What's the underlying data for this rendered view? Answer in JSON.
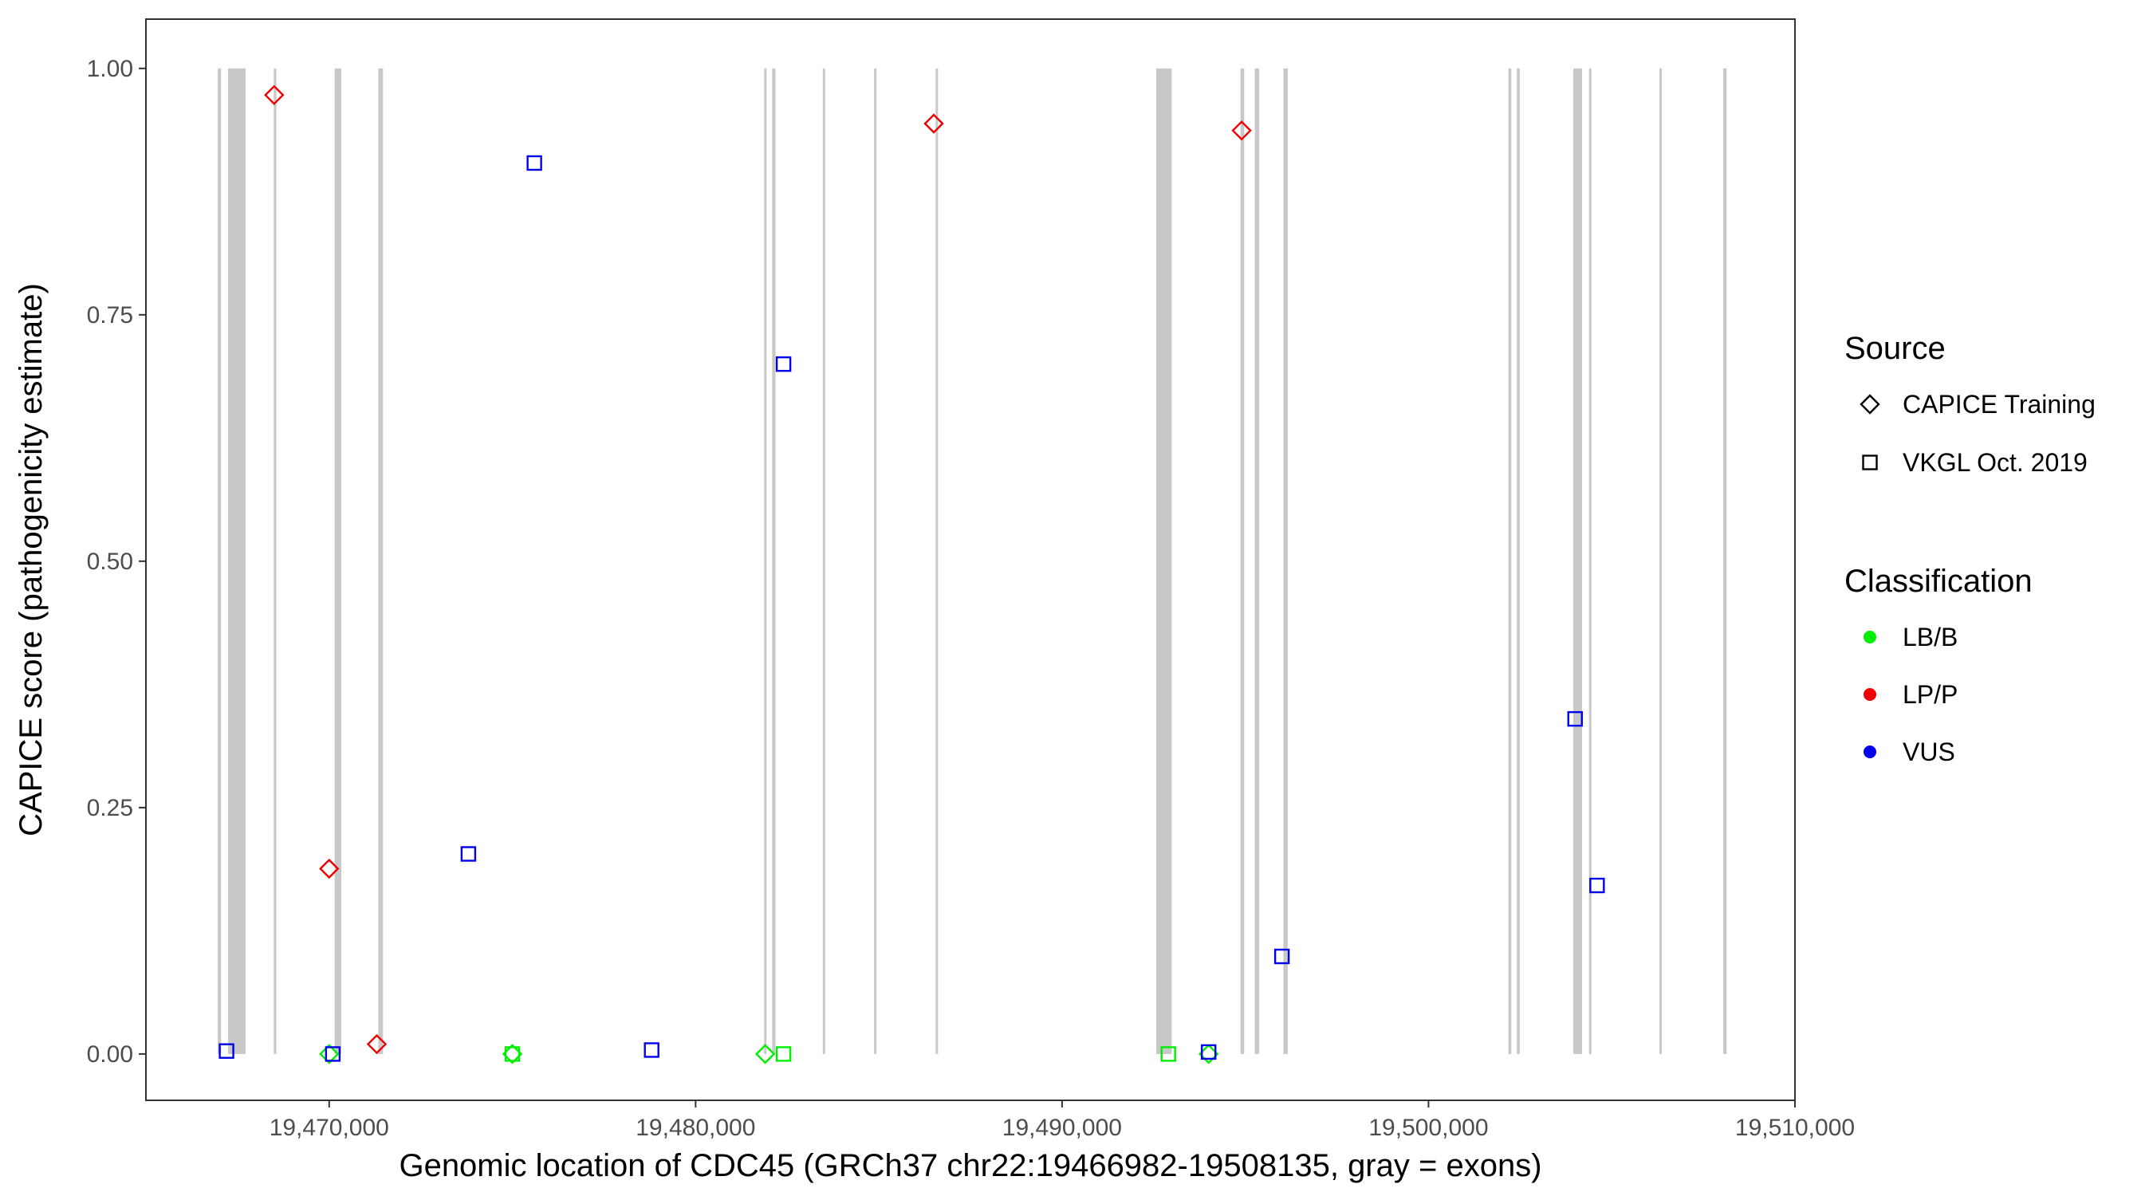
{
  "chart_data": {
    "type": "scatter",
    "title": "",
    "xlabel": "Genomic location of CDC45 (GRCh37 chr22:19466982-19508135, gray = exons)",
    "ylabel": "CAPICE score (pathogenicity estimate)",
    "xlim": [
      19465000,
      19510000
    ],
    "ylim": [
      -0.047,
      1.05
    ],
    "x_ticks": [
      19470000,
      19480000,
      19490000,
      19500000,
      19510000
    ],
    "x_tick_labels": [
      "19,470,000",
      "19,480,000",
      "19,490,000",
      "19,500,000",
      "19,510,000"
    ],
    "y_ticks": [
      0,
      0.25,
      0.5,
      0.75,
      1.0
    ],
    "y_tick_labels": [
      "0.00",
      "0.25",
      "0.50",
      "0.75",
      "1.00"
    ],
    "grid": false,
    "legend_position": "right",
    "exon_color": "#c8c8c8",
    "exons": [
      [
        19466960,
        19467050
      ],
      [
        19467240,
        19467720
      ],
      [
        19468490,
        19468560
      ],
      [
        19470150,
        19470330
      ],
      [
        19471340,
        19471470
      ],
      [
        19481870,
        19481930
      ],
      [
        19482090,
        19482180
      ],
      [
        19483470,
        19483530
      ],
      [
        19484870,
        19484930
      ],
      [
        19486550,
        19486610
      ],
      [
        19492570,
        19492990
      ],
      [
        19494870,
        19494970
      ],
      [
        19495260,
        19495380
      ],
      [
        19496040,
        19496160
      ],
      [
        19502180,
        19502260
      ],
      [
        19502410,
        19502490
      ],
      [
        19503950,
        19504190
      ],
      [
        19504380,
        19504440
      ],
      [
        19506300,
        19506360
      ],
      [
        19508040,
        19508135
      ]
    ],
    "legend": {
      "source_title": "Source",
      "source_entries": [
        {
          "label": "CAPICE Training",
          "shape": "diamond"
        },
        {
          "label": "VKGL Oct. 2019",
          "shape": "square"
        }
      ],
      "class_title": "Classification",
      "class_entries": [
        {
          "label": "LB/B",
          "color": "#00ee00"
        },
        {
          "label": "LP/P",
          "color": "#ee0000"
        },
        {
          "label": "VUS",
          "color": "#0000ee"
        }
      ]
    },
    "series": [
      {
        "source": "CAPICE Training",
        "classification": "LP/P",
        "shape": "diamond",
        "color": "#ee0000",
        "points": [
          [
            19468500,
            0.973
          ],
          [
            19470000,
            0.188
          ],
          [
            19471300,
            0.01
          ],
          [
            19486500,
            0.944
          ],
          [
            19494900,
            0.937
          ]
        ]
      },
      {
        "source": "CAPICE Training",
        "classification": "LB/B",
        "shape": "diamond",
        "color": "#00ee00",
        "points": [
          [
            19470000,
            0.0
          ],
          [
            19475000,
            0.0
          ],
          [
            19481900,
            0.0
          ],
          [
            19494000,
            0.0
          ]
        ]
      },
      {
        "source": "VKGL Oct. 2019",
        "classification": "LB/B",
        "shape": "square",
        "color": "#00ee00",
        "points": [
          [
            19475000,
            0.0
          ],
          [
            19482400,
            0.0
          ],
          [
            19492900,
            0.0
          ]
        ]
      },
      {
        "source": "VKGL Oct. 2019",
        "classification": "VUS",
        "shape": "square",
        "color": "#0000ee",
        "points": [
          [
            19467200,
            0.003
          ],
          [
            19470100,
            0.0
          ],
          [
            19473800,
            0.203
          ],
          [
            19475600,
            0.904
          ],
          [
            19478800,
            0.004
          ],
          [
            19482400,
            0.7
          ],
          [
            19494000,
            0.002
          ],
          [
            19496000,
            0.099
          ],
          [
            19504000,
            0.34
          ],
          [
            19504600,
            0.171
          ]
        ]
      }
    ]
  }
}
